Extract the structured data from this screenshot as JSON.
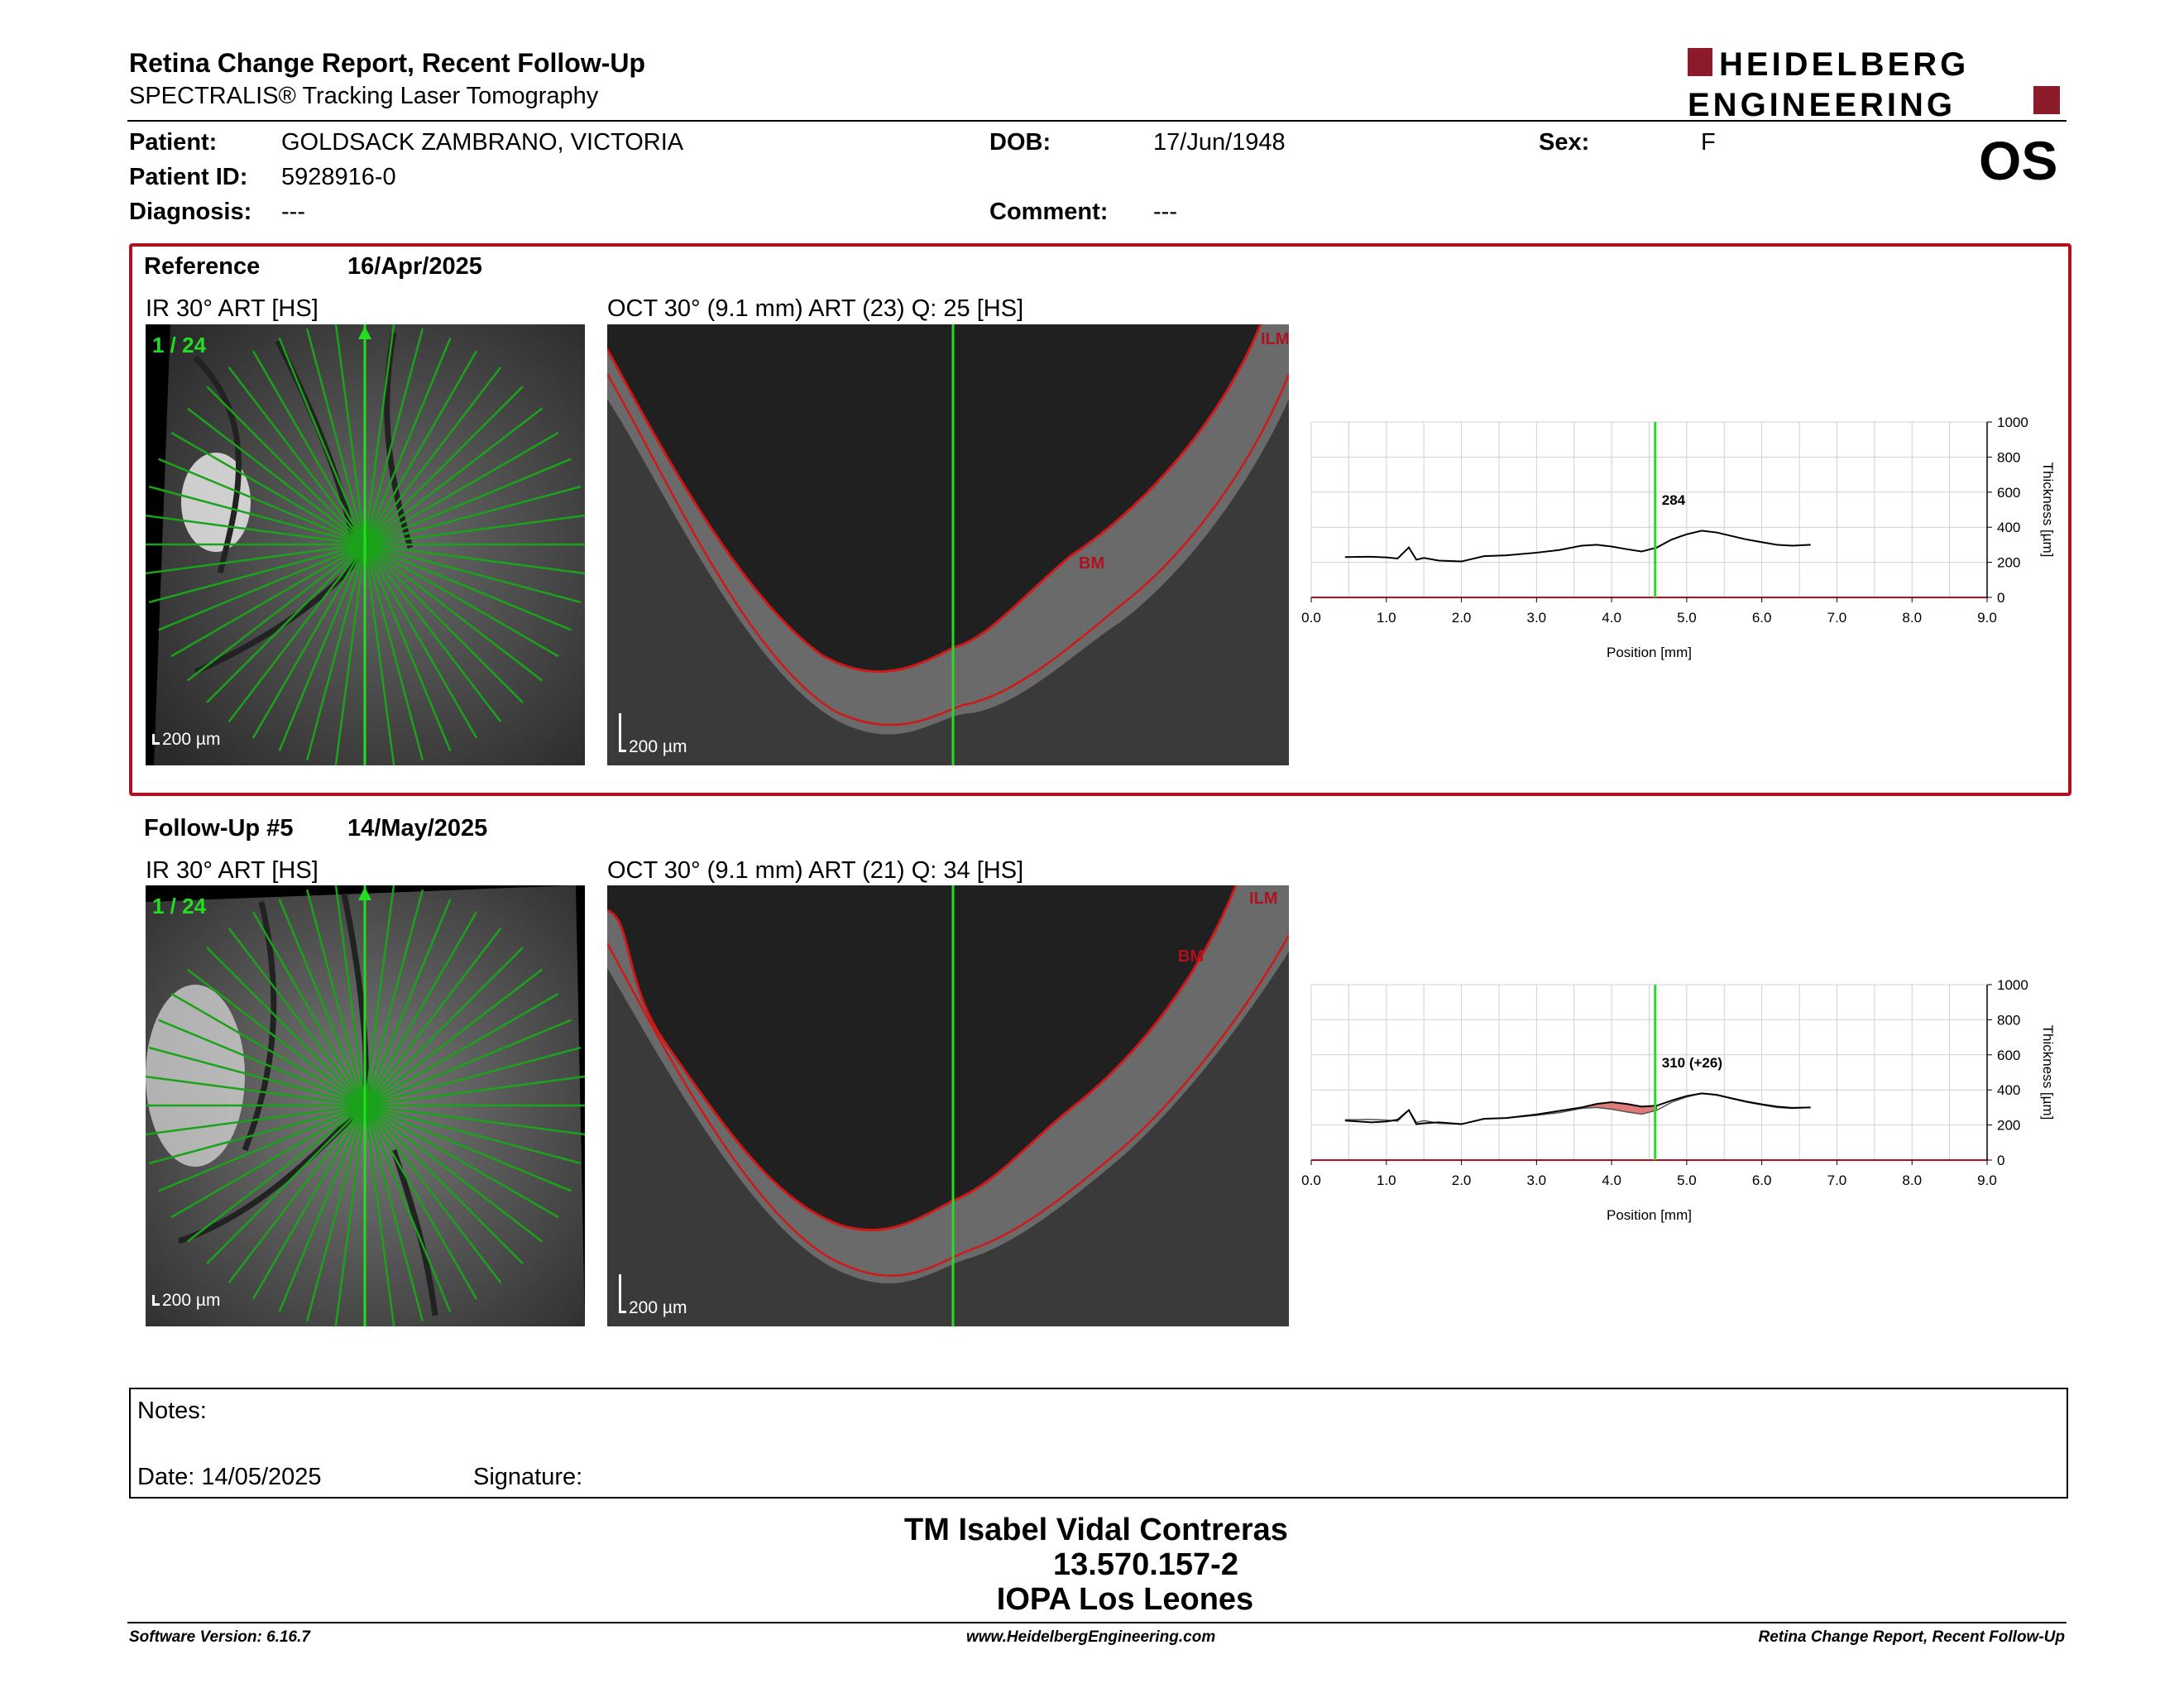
{
  "report": {
    "title": "Retina Change Report, Recent Follow-Up",
    "subtitle": "SPECTRALIS® Tracking Laser Tomography"
  },
  "brand": {
    "line1": "HEIDELBERG",
    "line2": "ENGINEERING",
    "color": "#8b1a2b"
  },
  "patient": {
    "name_label": "Patient:",
    "name": "GOLDSACK ZAMBRANO, VICTORIA",
    "id_label": "Patient ID:",
    "id": "5928916-0",
    "diagnosis_label": "Diagnosis:",
    "diagnosis": "---",
    "dob_label": "DOB:",
    "dob": "17/Jun/1948",
    "comment_label": "Comment:",
    "comment": "---",
    "sex_label": "Sex:",
    "sex": "F",
    "eye": "OS"
  },
  "reference": {
    "label": "Reference",
    "date": "16/Apr/2025",
    "ir_title": "IR 30° ART [HS]",
    "ir_counter": "1 / 24",
    "oct_title": "OCT 30° (9.1 mm) ART (23) Q: 25 [HS]",
    "scale": "200 µm",
    "tag_ilm": "ILM",
    "tag_bm": "BM"
  },
  "followup": {
    "label": "Follow-Up #5",
    "date": "14/May/2025",
    "ir_title": "IR 30° ART [HS]",
    "ir_counter": "1 / 24",
    "oct_title": "OCT 30° (9.1 mm) ART (21) Q: 34 [HS]",
    "scale": "200 µm",
    "tag_ilm": "ILM",
    "tag_bm": "BM"
  },
  "chart_data": [
    {
      "type": "line",
      "xlabel": "Position [mm]",
      "ylabel": "Thickness [µm]",
      "xlim": [
        0,
        9
      ],
      "ylim": [
        0,
        1000
      ],
      "xticks": [
        "0.0",
        "1.0",
        "2.0",
        "3.0",
        "4.0",
        "5.0",
        "6.0",
        "7.0",
        "8.0",
        "9.0"
      ],
      "yticks": [
        "0",
        "200",
        "400",
        "600",
        "800",
        "1000"
      ],
      "marker_x": 4.58,
      "marker_label": "284",
      "series": [
        {
          "x": [
            0.45,
            0.8,
            1.0,
            1.15,
            1.3,
            1.4,
            1.5,
            1.7,
            2.0,
            2.3,
            2.6,
            3.0,
            3.3,
            3.6,
            3.8,
            4.0,
            4.2,
            4.4,
            4.6,
            4.8,
            5.0,
            5.2,
            5.4,
            5.6,
            5.8,
            6.0,
            6.2,
            6.4,
            6.65
          ],
          "y": [
            230,
            232,
            228,
            222,
            285,
            215,
            225,
            210,
            205,
            235,
            240,
            255,
            270,
            295,
            300,
            290,
            275,
            262,
            284,
            330,
            360,
            380,
            370,
            350,
            330,
            315,
            300,
            295,
            300
          ]
        }
      ]
    },
    {
      "type": "line",
      "xlabel": "Position [mm]",
      "ylabel": "Thickness [µm]",
      "xlim": [
        0,
        9
      ],
      "ylim": [
        0,
        1000
      ],
      "xticks": [
        "0.0",
        "1.0",
        "2.0",
        "3.0",
        "4.0",
        "5.0",
        "6.0",
        "7.0",
        "8.0",
        "9.0"
      ],
      "yticks": [
        "0",
        "200",
        "400",
        "600",
        "800",
        "1000"
      ],
      "marker_x": 4.58,
      "marker_label": "310 (+26)",
      "highlight_color": "#e07a7a",
      "series": [
        {
          "x": [
            0.45,
            0.8,
            1.0,
            1.15,
            1.3,
            1.4,
            1.5,
            1.7,
            2.0,
            2.3,
            2.6,
            3.0,
            3.3,
            3.6,
            3.8,
            4.0,
            4.2,
            4.4,
            4.6,
            4.8,
            5.0,
            5.2,
            5.4,
            5.6,
            5.8,
            6.0,
            6.2,
            6.4,
            6.65
          ],
          "y": [
            225,
            215,
            220,
            230,
            285,
            205,
            210,
            215,
            205,
            235,
            240,
            260,
            280,
            300,
            320,
            330,
            320,
            305,
            310,
            340,
            365,
            380,
            372,
            352,
            333,
            318,
            305,
            298,
            300
          ]
        }
      ]
    }
  ],
  "notes": {
    "notes_label": "Notes:",
    "date_label": "Date: 14/05/2025",
    "signature_label": "Signature:"
  },
  "signatory": {
    "name": "TM Isabel Vidal Contreras",
    "rut": "13.570.157-2",
    "org": "IOPA Los Leones"
  },
  "footer": {
    "software": "Software Version: 6.16.7",
    "url": "www.HeidelbergEngineering.com",
    "report": "Retina Change Report, Recent Follow-Up"
  }
}
